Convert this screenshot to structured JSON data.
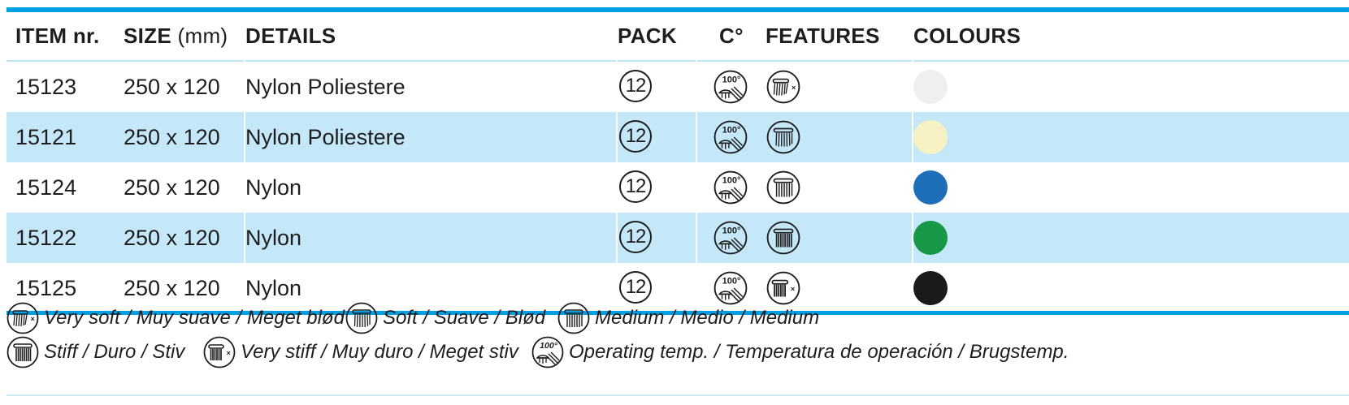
{
  "table": {
    "headers": {
      "item": "ITEM nr.",
      "size": "SIZE",
      "size_unit": "(mm)",
      "details": "DETAILS",
      "pack": "PACK",
      "temp": "C°",
      "features": "FEATURES",
      "colours": "COLOURS"
    },
    "rows": [
      {
        "item": "15123",
        "size": "250 x 120",
        "details": "Nylon Poliestere",
        "pack": "12",
        "temp_icon": "temp-100-icon",
        "feature_icon": "very-soft-brush-icon",
        "colour": "#efefef"
      },
      {
        "item": "15121",
        "size": "250 x 120",
        "details": "Nylon Poliestere",
        "pack": "12",
        "temp_icon": "temp-100-icon",
        "feature_icon": "soft-brush-icon",
        "colour": "#f7f1c4"
      },
      {
        "item": "15124",
        "size": "250 x 120",
        "details": "Nylon",
        "pack": "12",
        "temp_icon": "temp-100-icon",
        "feature_icon": "medium-brush-icon",
        "colour": "#1e6fb8"
      },
      {
        "item": "15122",
        "size": "250 x 120",
        "details": "Nylon",
        "pack": "12",
        "temp_icon": "temp-100-icon",
        "feature_icon": "stiff-brush-icon",
        "colour": "#169847"
      },
      {
        "item": "15125",
        "size": "250 x 120",
        "details": "Nylon",
        "pack": "12",
        "temp_icon": "temp-100-icon",
        "feature_icon": "very-stiff-brush-icon",
        "colour": "#1a1a1a"
      }
    ]
  },
  "legend": {
    "very_soft": "Very soft / Muy suave / Meget blød",
    "soft": "Soft / Suave / Blød",
    "medium": "Medium / Medio / Medium",
    "stiff": "Stiff / Duro / Stiv",
    "very_stiff": "Very stiff / Muy duro / Meget stiv",
    "temp": "Operating temp. / Temperatura de operación / Brugstemp."
  },
  "colors": {
    "accent_blue": "#009fe3",
    "row_highlight": "#c5e8f9"
  }
}
